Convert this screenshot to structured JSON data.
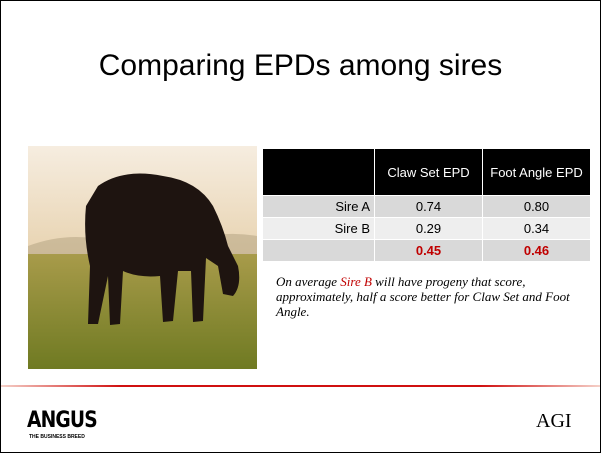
{
  "title": "Comparing EPDs among sires",
  "table": {
    "columns": [
      "Claw Set EPD",
      "Foot Angle EPD"
    ],
    "rows": [
      {
        "label": "Sire A",
        "values": [
          "0.74",
          "0.80"
        ]
      },
      {
        "label": "Sire B",
        "values": [
          "0.29",
          "0.34"
        ]
      },
      {
        "values": [
          "0.45",
          "0.46"
        ]
      }
    ]
  },
  "note": {
    "before": "On average",
    "highlight": "Sire B",
    "after": "will have progeny that score, approximately, half a score better for Claw Set and Foot Angle."
  },
  "footer": {
    "left_logo": "ANGUS",
    "left_tagline": "THE BUSINESS BREED",
    "right_logo": "AGI"
  }
}
